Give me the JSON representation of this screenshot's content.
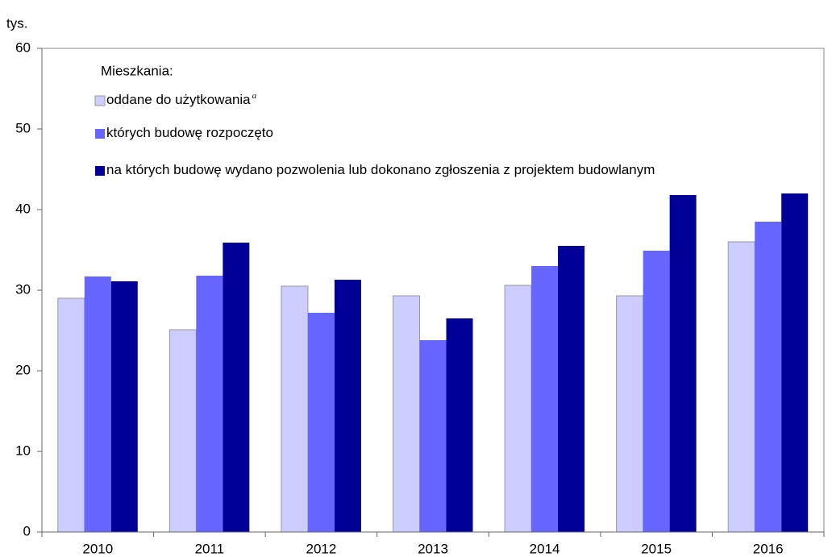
{
  "chart_data": {
    "type": "bar",
    "y_unit": "tys.",
    "legend_title": "Mieszkania:",
    "categories": [
      "2010",
      "2011",
      "2012",
      "2013",
      "2014",
      "2015",
      "2016"
    ],
    "series": [
      {
        "name": "oddane do użytkowania",
        "name_superscript": "a",
        "color": "#ccccff",
        "values": [
          29.0,
          25.1,
          30.5,
          29.3,
          30.6,
          29.3,
          36.0
        ]
      },
      {
        "name": "których budowę rozpoczęto",
        "color": "#6666ff",
        "values": [
          31.7,
          31.8,
          27.2,
          23.8,
          33.0,
          34.9,
          38.5
        ]
      },
      {
        "name": "na których budowę wydano pozwolenia lub dokonano zgłoszenia z projektem budowlanym",
        "color": "#000099",
        "values": [
          31.1,
          35.9,
          31.3,
          26.5,
          35.5,
          41.8,
          42.0
        ]
      }
    ],
    "ylim": [
      0,
      60
    ],
    "yticks": [
      0,
      10,
      20,
      30,
      40,
      50,
      60
    ],
    "grid": false
  }
}
